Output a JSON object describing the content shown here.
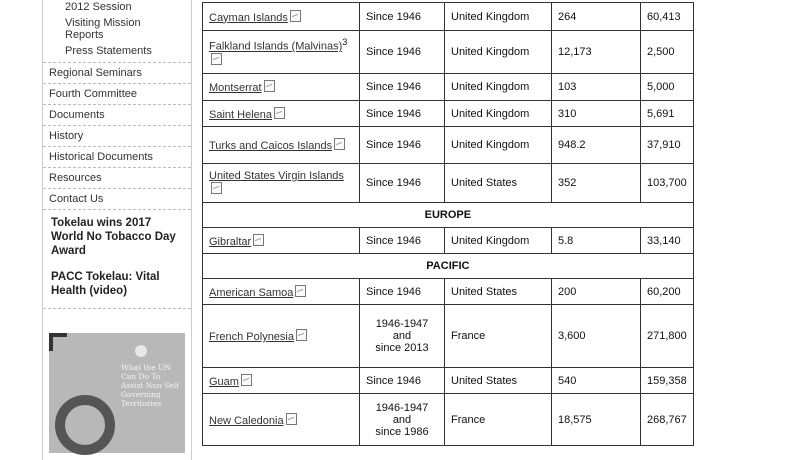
{
  "sidebar": {
    "sub_items": [
      "2012 Session",
      "Visiting Mission Reports",
      "Press Statements"
    ],
    "items": [
      "Regional Seminars",
      "Fourth Committee",
      "Documents",
      "History",
      "Historical Documents",
      "Resources",
      "Contact Us"
    ],
    "news": [
      "Tokelau wins 2017 World No Tobacco Day Award",
      "PACC Tokelau: Vital Health (video)"
    ],
    "promo_text": "What the UN Can Do To Assist Non-Self Governing Territories"
  },
  "table": {
    "rows": [
      {
        "type": "row",
        "name": "Cayman Islands",
        "since": "Since 1946",
        "admin": "United Kingdom",
        "area": "264",
        "pop": "60,413"
      },
      {
        "type": "row",
        "name": "Falkland Islands (Malvinas)",
        "sup": "3",
        "since": "Since 1946",
        "admin": "United Kingdom",
        "area": "12,173",
        "pop": "2,500"
      },
      {
        "type": "row",
        "name": "Montserrat",
        "since": "Since 1946",
        "admin": "United Kingdom",
        "area": "103",
        "pop": "5,000"
      },
      {
        "type": "row",
        "name": "Saint Helena",
        "since": "Since 1946",
        "admin": "United Kingdom",
        "area": "310",
        "pop": "5,691"
      },
      {
        "type": "row",
        "name": "Turks and Caicos Islands",
        "since": "Since 1946",
        "admin": "United Kingdom",
        "area": "948.2",
        "pop": "37,910"
      },
      {
        "type": "row",
        "name": "United States Virgin Islands",
        "since": "Since 1946",
        "admin": "United States",
        "area": "352",
        "pop": "103,700"
      },
      {
        "type": "region",
        "name": "EUROPE"
      },
      {
        "type": "row",
        "name": "Gibraltar",
        "since": "Since 1946",
        "admin": "United Kingdom",
        "area": "5.8",
        "pop": "33,140"
      },
      {
        "type": "region",
        "name": "PACIFIC"
      },
      {
        "type": "row",
        "name": "American Samoa",
        "since": "Since 1946",
        "admin": "United States",
        "area": "200",
        "pop": "60,200"
      },
      {
        "type": "row",
        "name": "French Polynesia",
        "since": "1946-1947 and since 2013",
        "since_lines": [
          "1946-1947",
          "and",
          "since 2013"
        ],
        "admin": "France",
        "area": "3,600",
        "pop": "271,800"
      },
      {
        "type": "row",
        "name": "Guam",
        "since": "Since 1946",
        "admin": "United States",
        "area": "540",
        "pop": "159,358"
      },
      {
        "type": "row",
        "name": "New Caledonia",
        "since": "1946-1947 and since 1986",
        "since_lines": [
          "1946-1947",
          "and",
          "since 1986"
        ],
        "admin": "France",
        "area": "18,575",
        "pop": "268,767"
      }
    ]
  }
}
